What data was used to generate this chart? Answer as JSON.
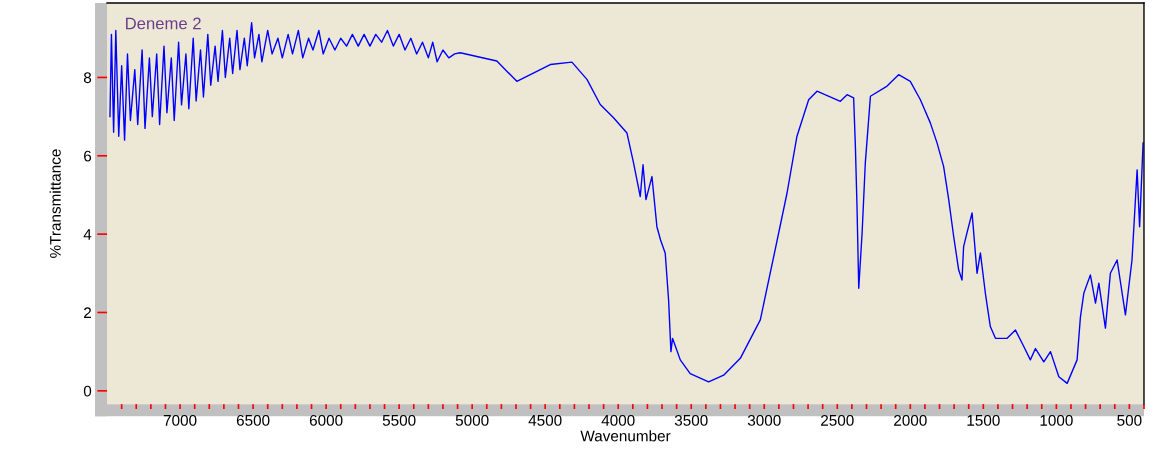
{
  "chart_data": {
    "type": "line",
    "title": "Deneme 2",
    "xlabel": "Wavenumber",
    "ylabel": "%Transmittance",
    "xlim": [
      7500,
      400
    ],
    "ylim": [
      -0.34,
      9.9
    ],
    "xticks": [
      {
        "value": 7400,
        "label": null
      },
      {
        "value": 7300,
        "label": null
      },
      {
        "value": 7200,
        "label": null
      },
      {
        "value": 7100,
        "label": null
      },
      7000,
      {
        "value": 6900,
        "label": null
      },
      {
        "value": 6800,
        "label": null
      },
      {
        "value": 6700,
        "label": null
      },
      {
        "value": 6600,
        "label": null
      },
      6500,
      {
        "value": 6400,
        "label": null
      },
      {
        "value": 6300,
        "label": null
      },
      {
        "value": 6200,
        "label": null
      },
      {
        "value": 6100,
        "label": null
      },
      6000,
      {
        "value": 5900,
        "label": null
      },
      {
        "value": 5800,
        "label": null
      },
      {
        "value": 5700,
        "label": null
      },
      {
        "value": 5600,
        "label": null
      },
      5500,
      {
        "value": 5400,
        "label": null
      },
      {
        "value": 5300,
        "label": null
      },
      {
        "value": 5200,
        "label": null
      },
      {
        "value": 5100,
        "label": null
      },
      5000,
      {
        "value": 4900,
        "label": null
      },
      {
        "value": 4800,
        "label": null
      },
      {
        "value": 4700,
        "label": null
      },
      {
        "value": 4600,
        "label": null
      },
      4500,
      {
        "value": 4400,
        "label": null
      },
      {
        "value": 4300,
        "label": null
      },
      {
        "value": 4200,
        "label": null
      },
      {
        "value": 4100,
        "label": null
      },
      4000,
      {
        "value": 3900,
        "label": null
      },
      {
        "value": 3800,
        "label": null
      },
      {
        "value": 3700,
        "label": null
      },
      {
        "value": 3600,
        "label": null
      },
      3500,
      {
        "value": 3400,
        "label": null
      },
      {
        "value": 3300,
        "label": null
      },
      {
        "value": 3200,
        "label": null
      },
      {
        "value": 3100,
        "label": null
      },
      3000,
      {
        "value": 2900,
        "label": null
      },
      {
        "value": 2800,
        "label": null
      },
      {
        "value": 2700,
        "label": null
      },
      {
        "value": 2600,
        "label": null
      },
      2500,
      {
        "value": 2400,
        "label": null
      },
      {
        "value": 2300,
        "label": null
      },
      {
        "value": 2200,
        "label": null
      },
      {
        "value": 2100,
        "label": null
      },
      2000,
      {
        "value": 1900,
        "label": null
      },
      {
        "value": 1800,
        "label": null
      },
      {
        "value": 1700,
        "label": null
      },
      {
        "value": 1600,
        "label": null
      },
      1500,
      {
        "value": 1400,
        "label": null
      },
      {
        "value": 1300,
        "label": null
      },
      {
        "value": 1200,
        "label": null
      },
      {
        "value": 1100,
        "label": null
      },
      1000,
      {
        "value": 900,
        "label": null
      },
      {
        "value": 800,
        "label": null
      },
      {
        "value": 700,
        "label": null
      },
      {
        "value": 600,
        "label": null
      },
      500,
      {
        "value": 400,
        "label": null
      }
    ],
    "yticks": [
      0,
      2,
      4,
      6,
      8
    ],
    "grid": false,
    "series": [
      {
        "color": "#0000ff",
        "x": [
          7480,
          7470,
          7455,
          7440,
          7420,
          7400,
          7380,
          7360,
          7340,
          7310,
          7290,
          7260,
          7240,
          7210,
          7190,
          7160,
          7140,
          7110,
          7090,
          7060,
          7040,
          7010,
          6990,
          6960,
          6940,
          6910,
          6890,
          6860,
          6840,
          6810,
          6790,
          6760,
          6740,
          6710,
          6690,
          6660,
          6640,
          6610,
          6590,
          6560,
          6540,
          6510,
          6490,
          6460,
          6440,
          6400,
          6370,
          6330,
          6300,
          6260,
          6230,
          6190,
          6160,
          6120,
          6090,
          6050,
          6020,
          5980,
          5940,
          5900,
          5860,
          5820,
          5780,
          5740,
          5700,
          5660,
          5620,
          5580,
          5540,
          5500,
          5460,
          5420,
          5380,
          5340,
          5300,
          5270,
          5240,
          5200,
          5160,
          5120,
          5082,
          4831,
          4694,
          4465,
          4317,
          4214,
          4123,
          4032,
          3940,
          3895,
          3849,
          3830,
          3810,
          3769,
          3735,
          3710,
          3678,
          3655,
          3639,
          3628,
          3575,
          3507,
          3381,
          3278,
          3164,
          3027,
          2935,
          2844,
          2776,
          2696,
          2639,
          2479,
          2433,
          2388,
          2376,
          2365,
          2353,
          2330,
          2308,
          2273,
          2159,
          2080,
          2000,
          1931,
          1863,
          1817,
          1772,
          1737,
          1703,
          1669,
          1646,
          1635,
          1612,
          1577,
          1543,
          1520,
          1486,
          1452,
          1417,
          1337,
          1280,
          1223,
          1178,
          1143,
          1086,
          1040,
          983,
          926,
          858,
          835,
          812,
          767,
          732,
          709,
          664,
          630,
          584,
          527,
          482,
          447,
          430,
          406
        ],
        "values": [
          7.0,
          9.1,
          6.6,
          9.2,
          6.5,
          8.3,
          6.4,
          8.6,
          6.9,
          8.2,
          6.8,
          8.7,
          6.7,
          8.5,
          7.0,
          8.6,
          6.8,
          8.8,
          7.1,
          8.5,
          6.9,
          8.9,
          7.3,
          8.6,
          7.2,
          9.0,
          7.4,
          8.7,
          7.5,
          9.1,
          7.8,
          8.8,
          7.9,
          9.2,
          8.0,
          9.0,
          8.1,
          9.2,
          8.2,
          9.0,
          8.3,
          9.4,
          8.5,
          9.1,
          8.4,
          9.2,
          8.6,
          9.0,
          8.5,
          9.1,
          8.6,
          9.2,
          8.5,
          9.0,
          8.7,
          9.2,
          8.6,
          9.0,
          8.7,
          9.0,
          8.8,
          9.1,
          8.8,
          9.1,
          8.8,
          9.1,
          8.9,
          9.2,
          8.8,
          9.1,
          8.7,
          9.0,
          8.6,
          8.9,
          8.5,
          8.9,
          8.4,
          8.7,
          8.5,
          8.6,
          8.63,
          8.42,
          7.9,
          8.33,
          8.39,
          7.95,
          7.31,
          6.97,
          6.58,
          5.82,
          4.96,
          5.77,
          4.88,
          5.47,
          4.19,
          3.85,
          3.51,
          2.32,
          1.0,
          1.34,
          0.79,
          0.44,
          0.23,
          0.4,
          0.83,
          1.81,
          3.43,
          5.05,
          6.5,
          7.43,
          7.65,
          7.39,
          7.56,
          7.48,
          6.24,
          4.71,
          2.62,
          4.03,
          5.82,
          7.52,
          7.78,
          8.07,
          7.9,
          7.43,
          6.84,
          6.33,
          5.73,
          4.88,
          3.94,
          3.09,
          2.83,
          3.68,
          4.03,
          4.54,
          3.0,
          3.52,
          2.49,
          1.64,
          1.34,
          1.34,
          1.55,
          1.13,
          0.79,
          1.08,
          0.74,
          1.0,
          0.36,
          0.19,
          0.79,
          1.89,
          2.49,
          2.96,
          2.24,
          2.75,
          1.6,
          3.0,
          3.34,
          1.94,
          3.34,
          5.64,
          4.19,
          6.33
        ]
      }
    ]
  }
}
